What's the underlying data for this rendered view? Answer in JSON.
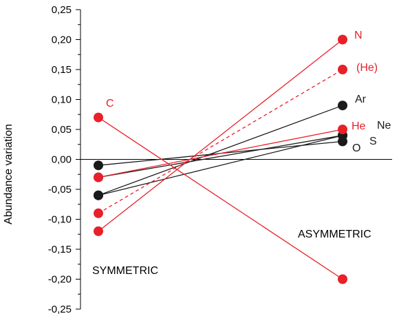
{
  "chart_data": {
    "type": "line",
    "ylabel": "Abundance variation",
    "ylim": [
      -0.25,
      0.25
    ],
    "yticks": [
      "0,25",
      "0,20",
      "0,15",
      "0,10",
      "0,05",
      "0,00",
      "-0,05",
      "-0,10",
      "-0,15",
      "-0,20",
      "-0,25"
    ],
    "ytick_values": [
      0.25,
      0.2,
      0.15,
      0.1,
      0.05,
      0.0,
      -0.05,
      -0.1,
      -0.15,
      -0.2,
      -0.25
    ],
    "zero_line": true,
    "grid": false,
    "categories": [
      "SYMMETRIC",
      "ASYMMETRIC"
    ],
    "group_labels": {
      "symmetric": "SYMMETRIC",
      "asymmetric": "ASYMMETRIC"
    },
    "colors": {
      "red": "#e8202a",
      "black": "#1a1a1a"
    },
    "series": [
      {
        "name": "N",
        "values": [
          -0.12,
          0.2
        ],
        "color": "red",
        "dashed": false
      },
      {
        "name": "(He)",
        "values": [
          -0.09,
          0.15
        ],
        "color": "red",
        "dashed": true
      },
      {
        "name": "Ar",
        "values": [
          -0.06,
          0.09
        ],
        "color": "black",
        "dashed": false
      },
      {
        "name": "He",
        "values": [
          -0.03,
          0.05
        ],
        "color": "red",
        "dashed": false
      },
      {
        "name": "Ne",
        "values": [
          -0.03,
          0.04
        ],
        "color": "black",
        "dashed": false
      },
      {
        "name": "S",
        "values": [
          -0.06,
          0.04
        ],
        "color": "black",
        "dashed": false
      },
      {
        "name": "O",
        "values": [
          -0.01,
          0.03
        ],
        "color": "black",
        "dashed": false
      },
      {
        "name": "C",
        "values": [
          0.07,
          -0.2
        ],
        "color": "red",
        "dashed": false
      }
    ]
  }
}
